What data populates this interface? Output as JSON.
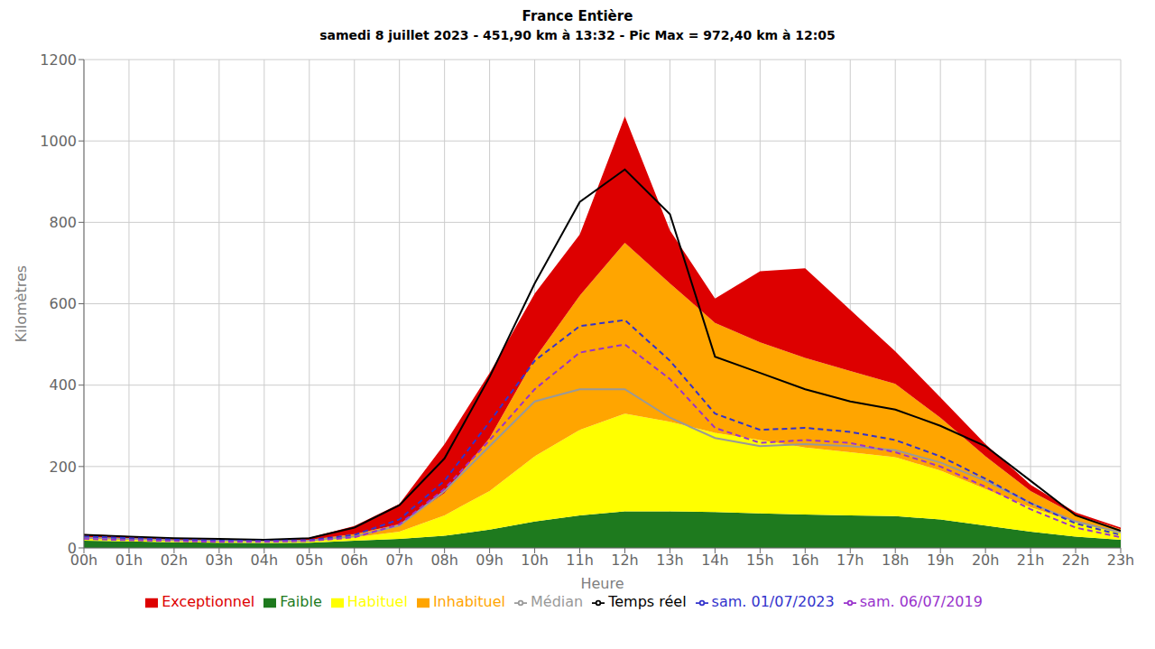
{
  "chart_data": {
    "type": "area",
    "title": "France Entière",
    "subtitle": "samedi 8 juillet 2023 - 451,90 km à 13:32 - Pic Max = 972,40 km à 12:05",
    "xlabel": "Heure",
    "ylabel": "Kilomètres",
    "x": [
      0,
      1,
      2,
      3,
      4,
      5,
      6,
      7,
      8,
      9,
      10,
      11,
      12,
      13,
      14,
      15,
      16,
      17,
      18,
      19,
      20,
      21,
      22,
      23
    ],
    "xlim": [
      0,
      23
    ],
    "ylim": [
      0,
      1200
    ],
    "yticks": [
      0,
      200,
      400,
      600,
      800,
      1000,
      1200
    ],
    "xticks": [
      {
        "value": 0,
        "label": "00h"
      },
      {
        "value": 1,
        "label": "01h"
      },
      {
        "value": 2,
        "label": "02h"
      },
      {
        "value": 3,
        "label": "03h"
      },
      {
        "value": 4,
        "label": "04h"
      },
      {
        "value": 5,
        "label": "05h"
      },
      {
        "value": 6,
        "label": "06h"
      },
      {
        "value": 7,
        "label": "07h"
      },
      {
        "value": 8,
        "label": "08h"
      },
      {
        "value": 9,
        "label": "09h"
      },
      {
        "value": 10,
        "label": "10h"
      },
      {
        "value": 11,
        "label": "11h"
      },
      {
        "value": 12,
        "label": "12h"
      },
      {
        "value": 13,
        "label": "13h"
      },
      {
        "value": 14,
        "label": "14h"
      },
      {
        "value": 15,
        "label": "15h"
      },
      {
        "value": 16,
        "label": "16h"
      },
      {
        "value": 17,
        "label": "17h"
      },
      {
        "value": 18,
        "label": "18h"
      },
      {
        "value": 19,
        "label": "19h"
      },
      {
        "value": 20,
        "label": "20h"
      },
      {
        "value": 21,
        "label": "21h"
      },
      {
        "value": 22,
        "label": "22h"
      },
      {
        "value": 23,
        "label": "23h"
      }
    ],
    "stacked": true,
    "grid": true,
    "legend": "bottom",
    "series": [
      {
        "name": "Faible",
        "type": "area",
        "color": "#1e7a1e",
        "values": [
          18,
          16,
          14,
          13,
          12,
          13,
          18,
          22,
          30,
          45,
          65,
          80,
          90,
          90,
          88,
          85,
          82,
          80,
          78,
          70,
          55,
          40,
          28,
          20
        ]
      },
      {
        "name": "Habituel",
        "type": "area",
        "color": "#ffff00",
        "values": [
          5,
          4,
          3,
          3,
          3,
          4,
          8,
          18,
          50,
          95,
          160,
          210,
          240,
          220,
          195,
          180,
          165,
          155,
          145,
          120,
          90,
          60,
          35,
          18
        ]
      },
      {
        "name": "Inhabituel",
        "type": "area",
        "color": "#ffa500",
        "values": [
          3,
          3,
          2,
          2,
          2,
          3,
          8,
          18,
          55,
          130,
          240,
          330,
          420,
          340,
          270,
          240,
          220,
          200,
          180,
          130,
          80,
          40,
          18,
          8
        ]
      },
      {
        "name": "Exceptionnel",
        "type": "area",
        "color": "#dd0000",
        "values": [
          8,
          6,
          4,
          3,
          3,
          5,
          20,
          50,
          120,
          160,
          160,
          150,
          310,
          130,
          60,
          175,
          220,
          150,
          80,
          50,
          30,
          15,
          6,
          4
        ]
      },
      {
        "name": "Médian",
        "type": "line",
        "color": "#999999",
        "line_style": "solid",
        "values": [
          25,
          22,
          19,
          18,
          17,
          18,
          28,
          55,
          140,
          250,
          360,
          390,
          390,
          320,
          270,
          250,
          255,
          250,
          240,
          210,
          165,
          110,
          65,
          38
        ]
      },
      {
        "name": "Temps réel",
        "type": "line",
        "color": "#000000",
        "line_style": "solid",
        "values": [
          32,
          28,
          24,
          22,
          20,
          24,
          50,
          105,
          220,
          420,
          650,
          850,
          930,
          820,
          470,
          430,
          390,
          360,
          340,
          300,
          250,
          165,
          80,
          42
        ]
      },
      {
        "name": "sam. 01/07/2023",
        "type": "line",
        "color": "#3333cc",
        "line_style": "dashed",
        "values": [
          28,
          24,
          20,
          18,
          17,
          19,
          32,
          70,
          165,
          310,
          460,
          545,
          560,
          460,
          330,
          290,
          295,
          285,
          265,
          225,
          170,
          110,
          60,
          32
        ]
      },
      {
        "name": "sam. 06/07/2019",
        "type": "line",
        "color": "#9933cc",
        "line_style": "dashed",
        "values": [
          22,
          19,
          17,
          15,
          15,
          17,
          26,
          58,
          145,
          265,
          390,
          480,
          500,
          415,
          295,
          258,
          265,
          258,
          235,
          200,
          150,
          95,
          50,
          26
        ]
      }
    ]
  }
}
